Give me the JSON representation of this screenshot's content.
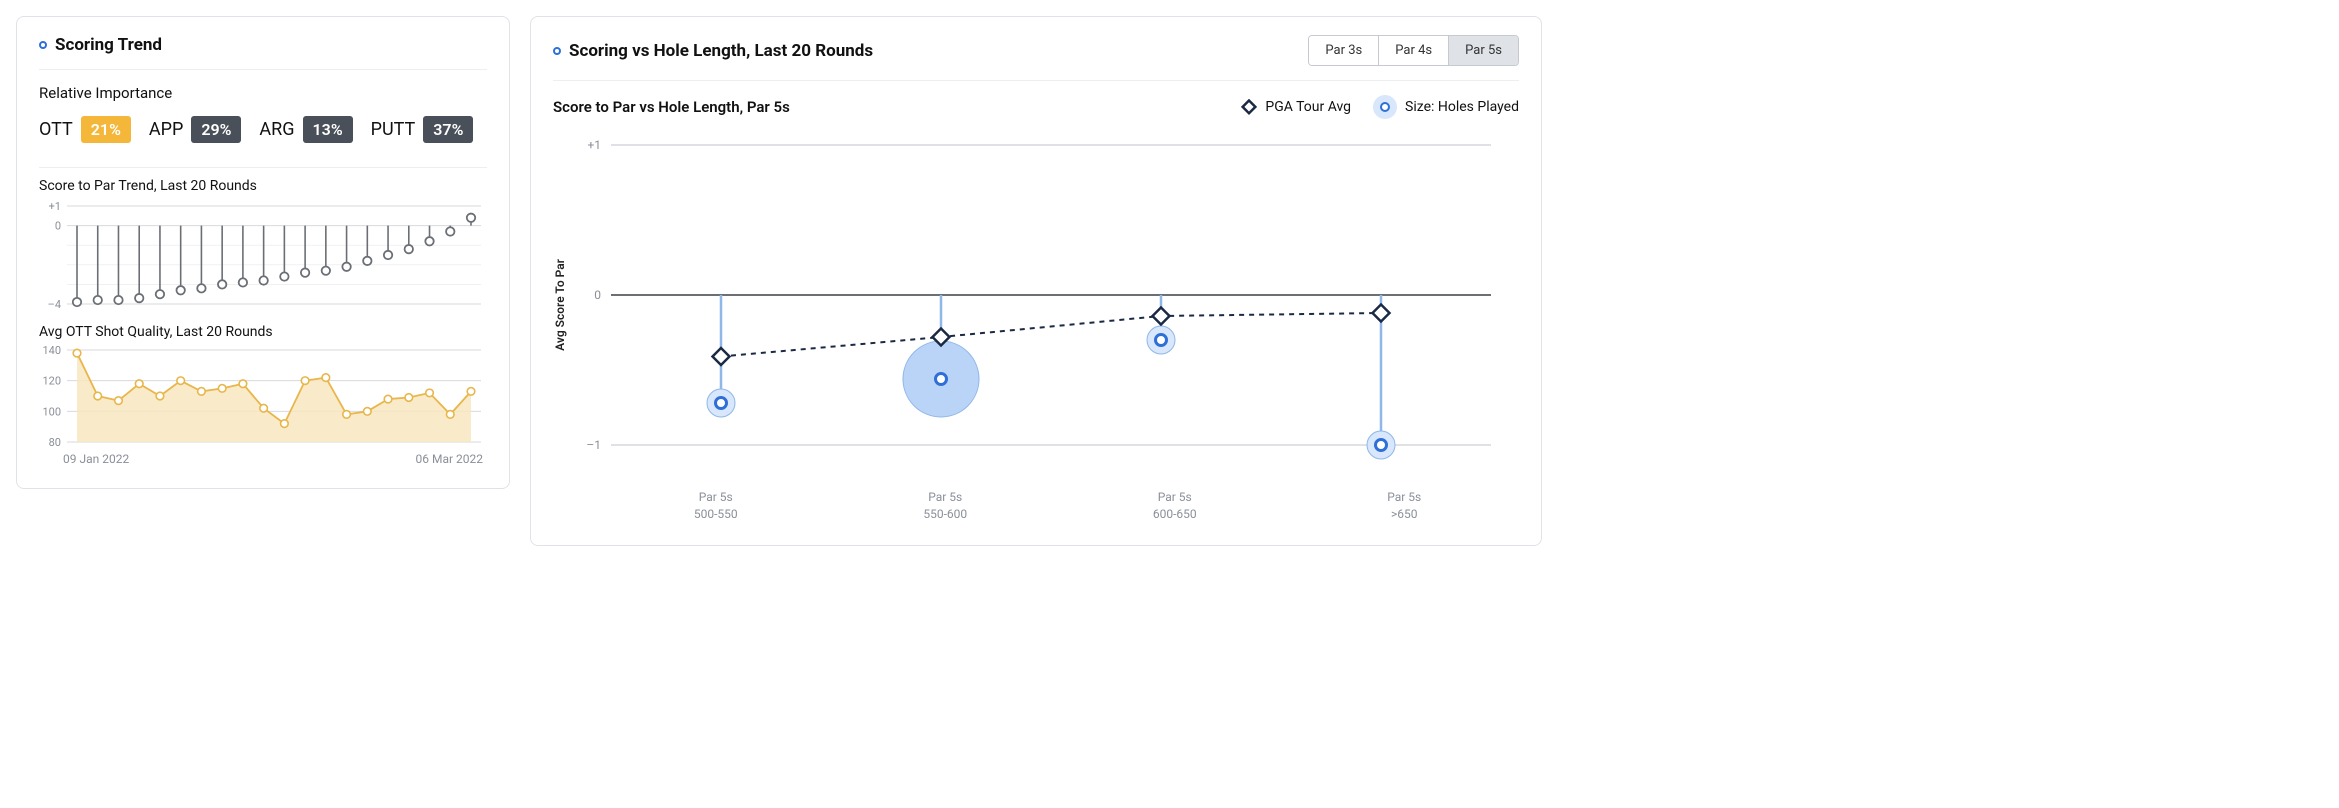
{
  "left_card": {
    "title": "Scoring Trend",
    "relative_importance_label": "Relative Importance",
    "importance": [
      {
        "code": "OTT",
        "pct": "21%",
        "bg": "#f4b73a"
      },
      {
        "code": "APP",
        "pct": "29%",
        "bg": "#4a5059"
      },
      {
        "code": "ARG",
        "pct": "13%",
        "bg": "#4a5059"
      },
      {
        "code": "PUTT",
        "pct": "37%",
        "bg": "#4a5059"
      }
    ],
    "score_trend": {
      "title": "Score to Par Trend, Last 20 Rounds",
      "type": "line",
      "ylim": [
        -4,
        1
      ],
      "yticks": [
        1,
        0,
        -4
      ],
      "ytick_labels": [
        "+1",
        "0",
        "–4"
      ],
      "values": [
        -3.9,
        -3.8,
        -3.8,
        -3.7,
        -3.5,
        -3.3,
        -3.2,
        -3.0,
        -2.9,
        -2.8,
        -2.6,
        -2.4,
        -2.3,
        -2.1,
        -1.8,
        -1.5,
        -1.2,
        -0.8,
        -0.3,
        0.4
      ],
      "marker_stroke": "#6b6f75",
      "marker_fill": "#ffffff",
      "drop_line_color": "#6b6f75",
      "grid_color": "#d8dade",
      "axis_color": "#6b6f75",
      "label_color": "#8a8f98",
      "label_fontsize": 11
    },
    "ott_quality": {
      "title": "Avg OTT Shot Quality, Last 20 Rounds",
      "type": "area",
      "ylim": [
        80,
        140
      ],
      "yticks": [
        140,
        120,
        100,
        80
      ],
      "values": [
        138,
        110,
        107,
        118,
        110,
        120,
        113,
        115,
        118,
        102,
        92,
        120,
        122,
        98,
        100,
        108,
        109,
        112,
        98,
        113
      ],
      "line_color": "#e8b64a",
      "fill_color": "#f8e8bf",
      "marker_stroke": "#e8b64a",
      "marker_fill": "#ffffff",
      "grid_color": "#d8dade",
      "label_color": "#8a8f98",
      "label_fontsize": 11
    },
    "date_start": "09 Jan 2022",
    "date_end": "06 Mar 2022"
  },
  "right_card": {
    "title": "Scoring vs Hole Length, Last 20 Rounds",
    "tabs": [
      {
        "label": "Par 3s",
        "active": false
      },
      {
        "label": "Par 4s",
        "active": false
      },
      {
        "label": "Par 5s",
        "active": true
      }
    ],
    "subheading": "Score to Par vs Hole Length, Par 5s",
    "legend": {
      "pga": "PGA Tour Avg",
      "size": "Size: Holes Played",
      "diamond_stroke": "#1a2a44",
      "diamond_fill": "#ffffff",
      "bubble_bg": "#d8e7fb",
      "bubble_ring": "#2f6fd8"
    },
    "y_axis_label": "Avg Score To Par",
    "chart": {
      "type": "bubble-line",
      "ylim": [
        -1,
        1
      ],
      "yticks": [
        1,
        0,
        -1
      ],
      "ytick_labels": [
        "+1",
        "0",
        "–1"
      ],
      "categories": [
        {
          "line1": "Par 5s",
          "line2": "500-550"
        },
        {
          "line1": "Par 5s",
          "line2": "550-600"
        },
        {
          "line1": "Par 5s",
          "line2": "600-650"
        },
        {
          "line1": "Par 5s",
          "line2": ">650"
        }
      ],
      "player_values": [
        -0.72,
        -0.56,
        -0.3,
        -1.0
      ],
      "player_radii": [
        14,
        38,
        14,
        14
      ],
      "pga_values": [
        -0.41,
        -0.28,
        -0.14,
        -0.12
      ],
      "zero_line_color": "#3a4048",
      "grid_color": "#c0c3c8",
      "drop_line_color": "#8fb7e8",
      "bubble_fill": "#d8e7fb",
      "bubble_fill_alt": "#b9d4f6",
      "bubble_stroke": "#8fb7e8",
      "bubble_center_ring": "#2f6fd8",
      "bubble_center_fill": "#ffffff",
      "diamond_stroke": "#1a2a44",
      "diamond_fill": "#ffffff",
      "pga_line_color": "#1a2a44",
      "label_color": "#8a8f98",
      "label_fontsize": 11
    }
  }
}
